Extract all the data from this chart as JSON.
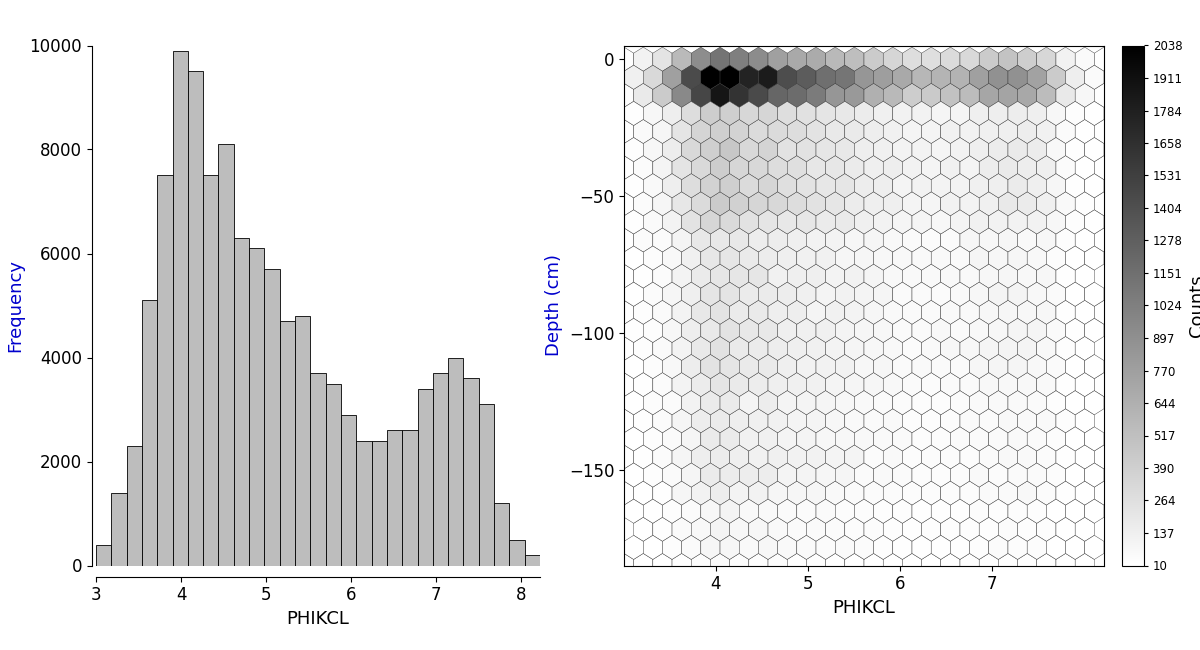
{
  "hist_bar_heights": [
    400,
    1400,
    2300,
    5100,
    7500,
    9900,
    9500,
    7500,
    8100,
    6300,
    6100,
    5700,
    4700,
    4800,
    3700,
    3500,
    2900,
    2400,
    2400,
    2600,
    2600,
    3400,
    3700,
    4000,
    3600,
    3100,
    1200,
    500,
    200
  ],
  "hist_bin_edges": [
    3.0,
    3.18,
    3.36,
    3.54,
    3.72,
    3.9,
    4.08,
    4.26,
    4.44,
    4.62,
    4.8,
    4.98,
    5.16,
    5.34,
    5.52,
    5.7,
    5.88,
    6.06,
    6.24,
    6.42,
    6.6,
    6.78,
    6.96,
    7.14,
    7.32,
    7.5,
    7.68,
    7.86,
    8.04,
    8.22
  ],
  "hist_bar_color": "#bdbdbd",
  "hist_bar_edgecolor": "#000000",
  "hist_xlabel": "PHIKCL",
  "hist_ylabel": "Frequency",
  "hist_xlim": [
    3.0,
    8.22
  ],
  "hist_ylim": [
    0,
    10000
  ],
  "hist_xticks": [
    3,
    4,
    5,
    6,
    7,
    8
  ],
  "hist_yticks": [
    0,
    2000,
    4000,
    6000,
    8000,
    10000
  ],
  "hex_xlabel": "PHIKCL",
  "hex_ylabel": "Depth (cm)",
  "hex_xlim": [
    3.0,
    8.22
  ],
  "hex_ylim": [
    -185,
    5
  ],
  "hex_xticks": [
    4,
    5,
    6,
    7
  ],
  "hex_yticks": [
    0,
    -50,
    -100,
    -150
  ],
  "hex_gridsize": 25,
  "colorbar_label": "Counts",
  "colorbar_ticks": [
    10,
    137,
    264,
    390,
    517,
    644,
    770,
    897,
    1024,
    1151,
    1278,
    1404,
    1531,
    1658,
    1784,
    1911,
    2038
  ],
  "cmap": "gray_r",
  "vmin": 10,
  "vmax": 2038,
  "background_color": "#ffffff",
  "font_color": "#000000",
  "font_size": 12,
  "label_font_size": 13,
  "ylabel_color": "#0000cd"
}
